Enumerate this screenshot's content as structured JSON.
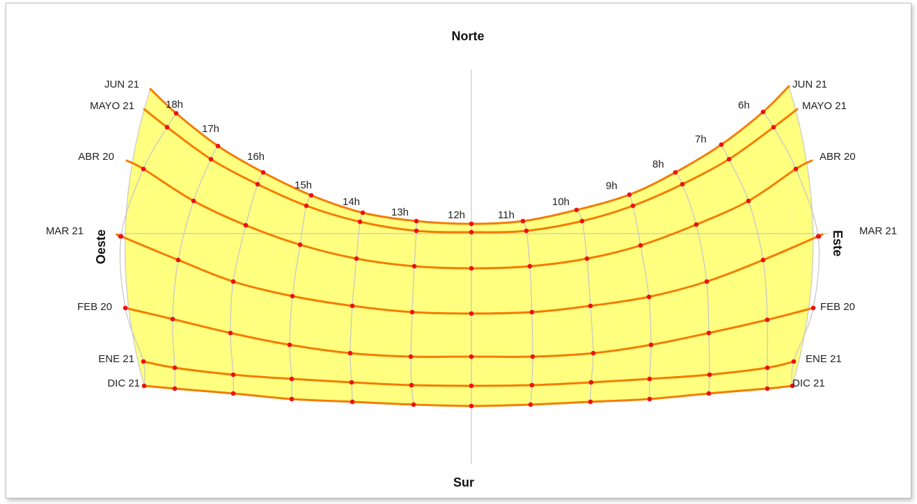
{
  "directions": {
    "north": "Norte",
    "south": "Sur",
    "west": "Oeste",
    "east": "Este"
  },
  "dates": [
    {
      "key": "jun",
      "left": "JUN 21",
      "right": "JUN 21"
    },
    {
      "key": "may",
      "left": "MAYO 21",
      "right": "MAYO 21"
    },
    {
      "key": "abr",
      "left": "ABR 20",
      "right": "ABR 20"
    },
    {
      "key": "mar",
      "left": "MAR 21",
      "right": "MAR 21"
    },
    {
      "key": "feb",
      "left": "FEB 20",
      "right": "FEB 20"
    },
    {
      "key": "ene",
      "left": "ENE 21",
      "right": "ENE 21"
    },
    {
      "key": "dic",
      "left": "DIC 21",
      "right": "DIC 21"
    }
  ],
  "hours": [
    "18h",
    "17h",
    "16h",
    "15h",
    "14h",
    "13h",
    "12h",
    "11h",
    "10h",
    "9h",
    "8h",
    "7h",
    "6h"
  ],
  "colors": {
    "fill": "#ffff80",
    "date_curve": "#f57c00",
    "hour_line": "#c8c8c8",
    "point": "#ee1111",
    "axis": "#bdbdbd"
  }
}
